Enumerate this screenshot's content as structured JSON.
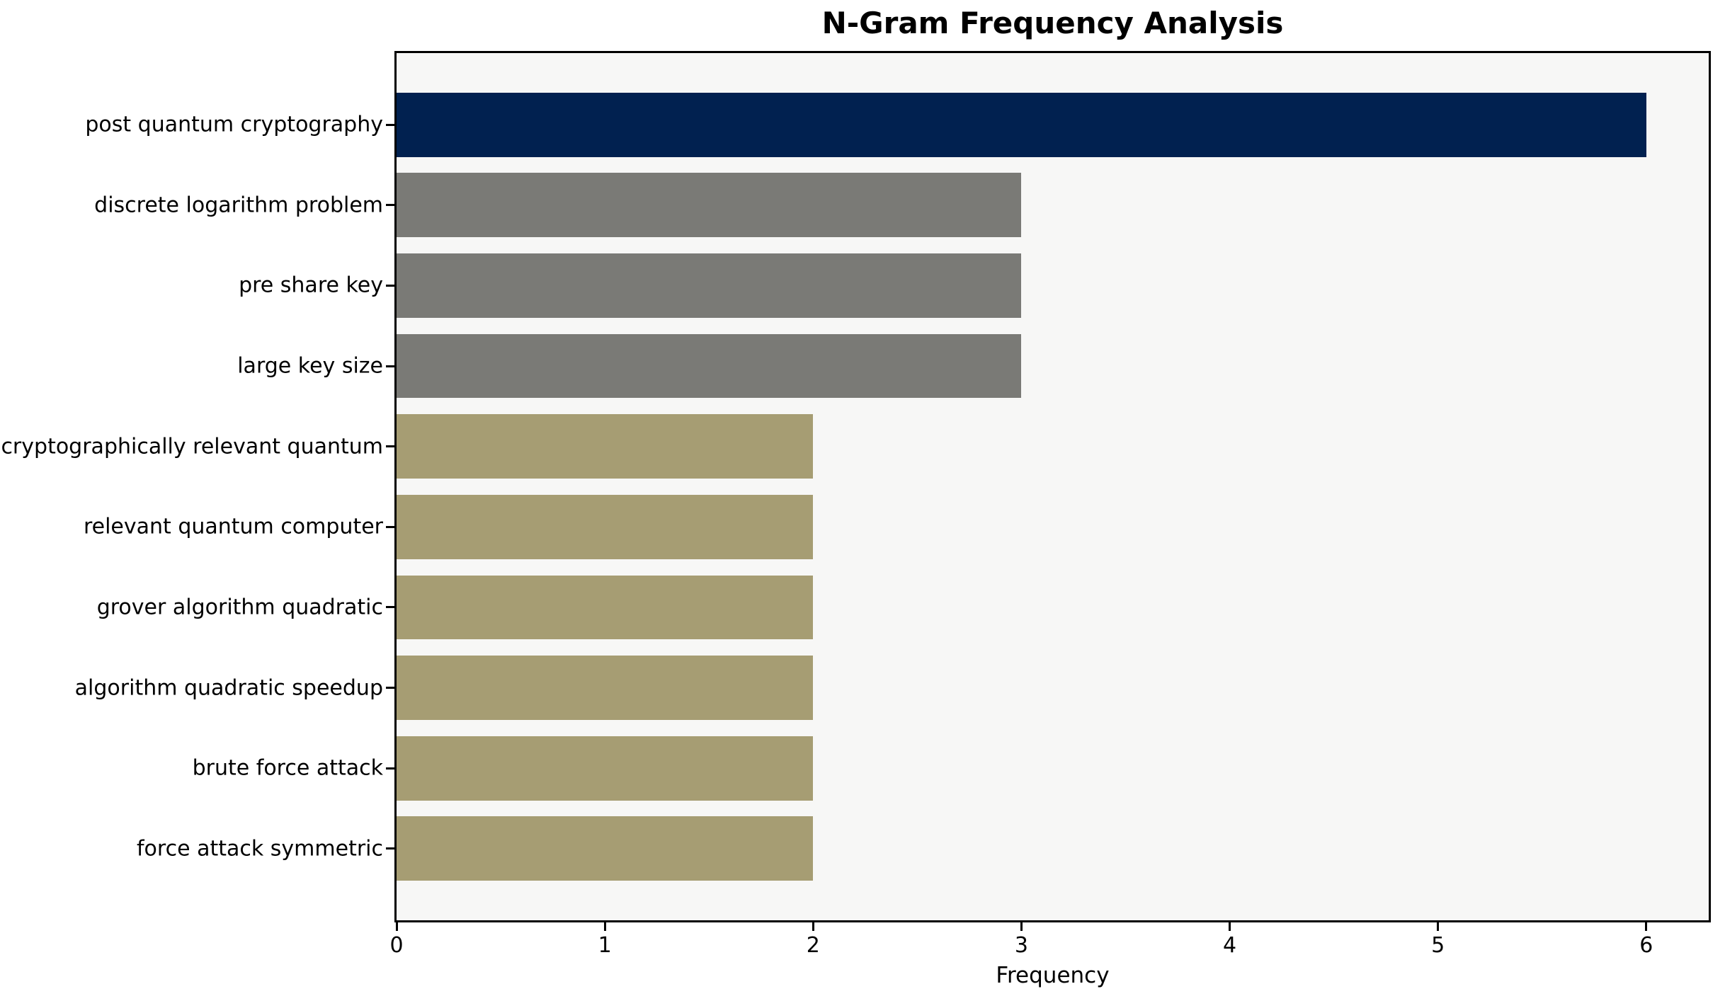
{
  "chart_data": {
    "type": "bar",
    "orientation": "horizontal",
    "title": "N-Gram Frequency Analysis",
    "xlabel": "Frequency",
    "ylabel": "",
    "categories": [
      "post quantum cryptography",
      "discrete logarithm problem",
      "pre share key",
      "large key size",
      "cryptographically relevant quantum",
      "relevant quantum computer",
      "grover algorithm quadratic",
      "algorithm quadratic speedup",
      "brute force attack",
      "force attack symmetric"
    ],
    "values": [
      6,
      3,
      3,
      3,
      2,
      2,
      2,
      2,
      2,
      2
    ],
    "bar_colors": [
      "#012150",
      "#7a7a76",
      "#7a7a76",
      "#7a7a76",
      "#a69d73",
      "#a69d73",
      "#a69d73",
      "#a69d73",
      "#a69d73",
      "#a69d73"
    ],
    "xlim": [
      0,
      6.3
    ],
    "x_ticks": [
      0,
      1,
      2,
      3,
      4,
      5,
      6
    ],
    "grid": false,
    "legend": null,
    "plot_background": "#f7f7f6",
    "figure_background": "#ffffff",
    "spine_color": "#000000"
  }
}
